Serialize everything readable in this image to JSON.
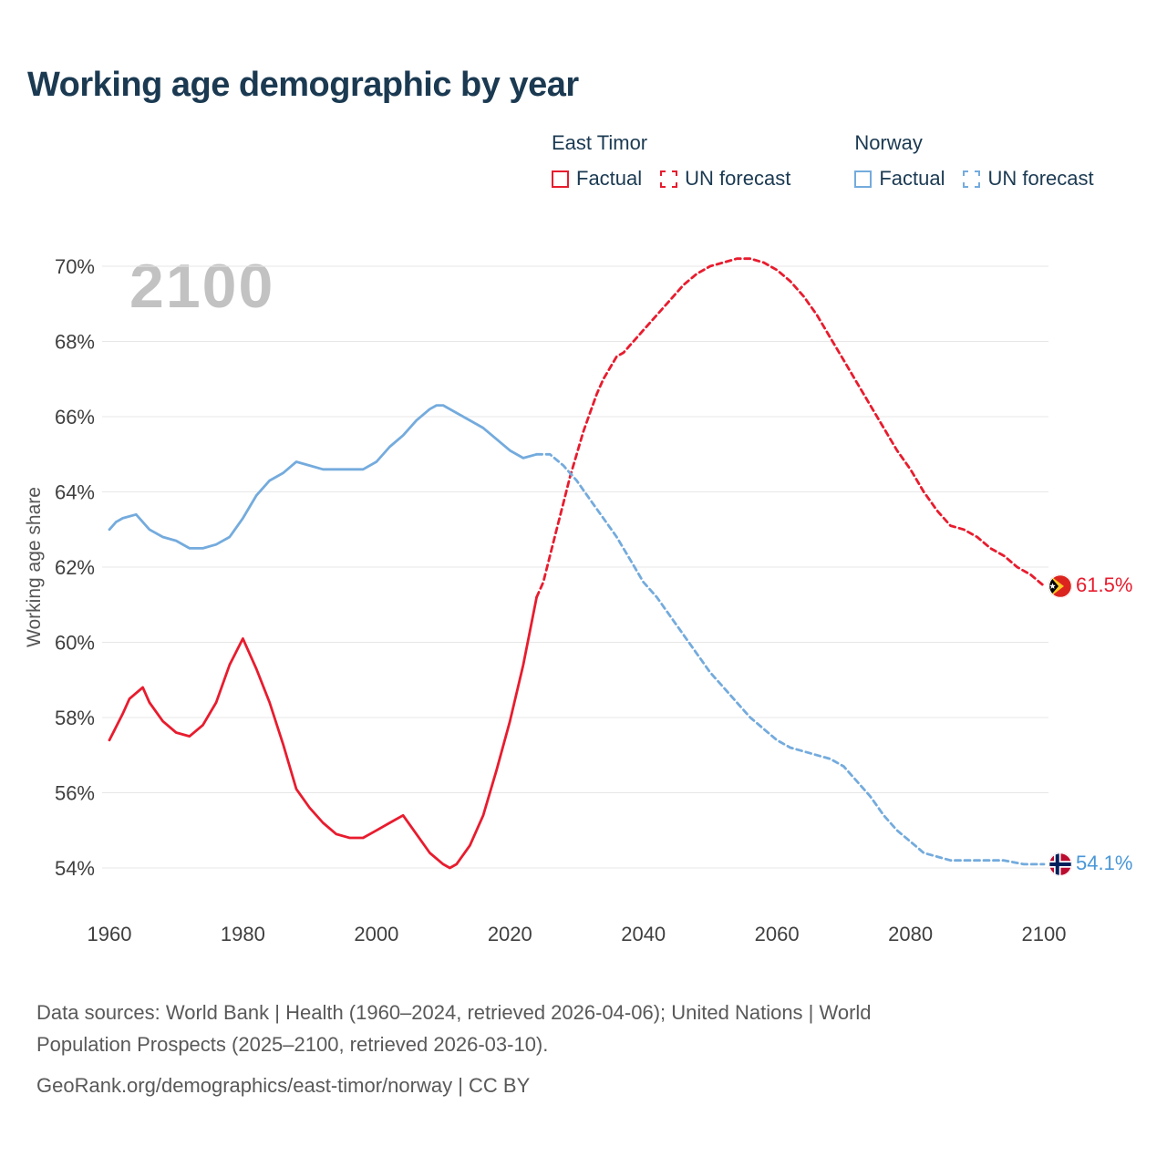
{
  "title": "Working age demographic by year",
  "watermark": "2100",
  "legend": {
    "groups": [
      {
        "name": "East Timor",
        "color": "#e81c2e",
        "items": [
          {
            "label": "Factual",
            "style": "solid"
          },
          {
            "label": "UN forecast",
            "style": "dashed"
          }
        ]
      },
      {
        "name": "Norway",
        "color": "#74abdd",
        "items": [
          {
            "label": "Factual",
            "style": "solid"
          },
          {
            "label": "UN forecast",
            "style": "dashed"
          }
        ]
      }
    ]
  },
  "end_labels": [
    {
      "flag": "east-timor",
      "text": "61.5%",
      "value": 61.5,
      "color": "#e81c2e"
    },
    {
      "flag": "norway",
      "text": "54.1%",
      "value": 54.1,
      "color": "#4a97d7"
    }
  ],
  "footer": {
    "lines": [
      "Data sources: World Bank | Health (1960–2024, retrieved 2026-04-06); United Nations | World",
      "Population Prospects (2025–2100, retrieved 2026-03-10).",
      "GeoRank.org/demographics/east-timor/norway | CC BY"
    ]
  },
  "chart_data": {
    "type": "line",
    "title": "Working age demographic by year",
    "xlabel": "",
    "ylabel": "Working age share",
    "xlim": [
      1960,
      2100
    ],
    "ylim": [
      54,
      70
    ],
    "xticks": [
      1960,
      1980,
      2000,
      2020,
      2040,
      2060,
      2080,
      2100
    ],
    "yticks": [
      54,
      56,
      58,
      60,
      62,
      64,
      66,
      68,
      70
    ],
    "grid": "horizontal",
    "legend_position": "top-right",
    "series": [
      {
        "name": "East Timor — Factual",
        "color": "#e81c2e",
        "dash": "solid",
        "points": [
          [
            1960,
            57.4
          ],
          [
            1962,
            58.1
          ],
          [
            1963,
            58.5
          ],
          [
            1965,
            58.8
          ],
          [
            1966,
            58.4
          ],
          [
            1968,
            57.9
          ],
          [
            1970,
            57.6
          ],
          [
            1972,
            57.5
          ],
          [
            1974,
            57.8
          ],
          [
            1976,
            58.4
          ],
          [
            1978,
            59.4
          ],
          [
            1980,
            60.1
          ],
          [
            1982,
            59.3
          ],
          [
            1984,
            58.4
          ],
          [
            1986,
            57.3
          ],
          [
            1988,
            56.1
          ],
          [
            1990,
            55.6
          ],
          [
            1992,
            55.2
          ],
          [
            1994,
            54.9
          ],
          [
            1996,
            54.8
          ],
          [
            1998,
            54.8
          ],
          [
            2000,
            55.0
          ],
          [
            2002,
            55.2
          ],
          [
            2004,
            55.4
          ],
          [
            2006,
            54.9
          ],
          [
            2008,
            54.4
          ],
          [
            2010,
            54.1
          ],
          [
            2011,
            54.0
          ],
          [
            2012,
            54.1
          ],
          [
            2014,
            54.6
          ],
          [
            2016,
            55.4
          ],
          [
            2018,
            56.6
          ],
          [
            2020,
            57.9
          ],
          [
            2022,
            59.4
          ],
          [
            2024,
            61.2
          ]
        ]
      },
      {
        "name": "East Timor — UN forecast",
        "color": "#e81c2e",
        "dash": "dashed",
        "points": [
          [
            2024,
            61.2
          ],
          [
            2025,
            61.6
          ],
          [
            2026,
            62.3
          ],
          [
            2027,
            63.0
          ],
          [
            2028,
            63.7
          ],
          [
            2029,
            64.4
          ],
          [
            2030,
            65.0
          ],
          [
            2031,
            65.6
          ],
          [
            2032,
            66.1
          ],
          [
            2033,
            66.6
          ],
          [
            2034,
            67.0
          ],
          [
            2035,
            67.3
          ],
          [
            2036,
            67.6
          ],
          [
            2037,
            67.7
          ],
          [
            2038,
            67.9
          ],
          [
            2040,
            68.3
          ],
          [
            2042,
            68.7
          ],
          [
            2044,
            69.1
          ],
          [
            2046,
            69.5
          ],
          [
            2048,
            69.8
          ],
          [
            2050,
            70.0
          ],
          [
            2052,
            70.1
          ],
          [
            2054,
            70.2
          ],
          [
            2056,
            70.2
          ],
          [
            2058,
            70.1
          ],
          [
            2060,
            69.9
          ],
          [
            2062,
            69.6
          ],
          [
            2064,
            69.2
          ],
          [
            2066,
            68.7
          ],
          [
            2068,
            68.1
          ],
          [
            2070,
            67.5
          ],
          [
            2072,
            66.9
          ],
          [
            2074,
            66.3
          ],
          [
            2076,
            65.7
          ],
          [
            2078,
            65.1
          ],
          [
            2080,
            64.6
          ],
          [
            2082,
            64.0
          ],
          [
            2084,
            63.5
          ],
          [
            2086,
            63.1
          ],
          [
            2088,
            63.0
          ],
          [
            2090,
            62.8
          ],
          [
            2092,
            62.5
          ],
          [
            2094,
            62.3
          ],
          [
            2096,
            62.0
          ],
          [
            2098,
            61.8
          ],
          [
            2100,
            61.5
          ]
        ]
      },
      {
        "name": "Norway — Factual",
        "color": "#74abdd",
        "dash": "solid",
        "points": [
          [
            1960,
            63.0
          ],
          [
            1961,
            63.2
          ],
          [
            1962,
            63.3
          ],
          [
            1964,
            63.4
          ],
          [
            1966,
            63.0
          ],
          [
            1968,
            62.8
          ],
          [
            1970,
            62.7
          ],
          [
            1972,
            62.5
          ],
          [
            1974,
            62.5
          ],
          [
            1976,
            62.6
          ],
          [
            1978,
            62.8
          ],
          [
            1980,
            63.3
          ],
          [
            1982,
            63.9
          ],
          [
            1984,
            64.3
          ],
          [
            1986,
            64.5
          ],
          [
            1988,
            64.8
          ],
          [
            1990,
            64.7
          ],
          [
            1992,
            64.6
          ],
          [
            1994,
            64.6
          ],
          [
            1996,
            64.6
          ],
          [
            1998,
            64.6
          ],
          [
            2000,
            64.8
          ],
          [
            2002,
            65.2
          ],
          [
            2004,
            65.5
          ],
          [
            2006,
            65.9
          ],
          [
            2008,
            66.2
          ],
          [
            2009,
            66.3
          ],
          [
            2010,
            66.3
          ],
          [
            2012,
            66.1
          ],
          [
            2014,
            65.9
          ],
          [
            2016,
            65.7
          ],
          [
            2018,
            65.4
          ],
          [
            2020,
            65.1
          ],
          [
            2022,
            64.9
          ],
          [
            2024,
            65.0
          ]
        ]
      },
      {
        "name": "Norway — UN forecast",
        "color": "#74abdd",
        "dash": "dashed",
        "points": [
          [
            2024,
            65.0
          ],
          [
            2026,
            65.0
          ],
          [
            2028,
            64.7
          ],
          [
            2030,
            64.3
          ],
          [
            2032,
            63.8
          ],
          [
            2034,
            63.3
          ],
          [
            2036,
            62.8
          ],
          [
            2038,
            62.2
          ],
          [
            2040,
            61.6
          ],
          [
            2042,
            61.2
          ],
          [
            2044,
            60.7
          ],
          [
            2046,
            60.2
          ],
          [
            2048,
            59.7
          ],
          [
            2050,
            59.2
          ],
          [
            2052,
            58.8
          ],
          [
            2054,
            58.4
          ],
          [
            2056,
            58.0
          ],
          [
            2058,
            57.7
          ],
          [
            2060,
            57.4
          ],
          [
            2062,
            57.2
          ],
          [
            2064,
            57.1
          ],
          [
            2066,
            57.0
          ],
          [
            2068,
            56.9
          ],
          [
            2070,
            56.7
          ],
          [
            2072,
            56.3
          ],
          [
            2074,
            55.9
          ],
          [
            2076,
            55.4
          ],
          [
            2078,
            55.0
          ],
          [
            2080,
            54.7
          ],
          [
            2082,
            54.4
          ],
          [
            2084,
            54.3
          ],
          [
            2086,
            54.2
          ],
          [
            2090,
            54.2
          ],
          [
            2094,
            54.2
          ],
          [
            2097,
            54.1
          ],
          [
            2100,
            54.1
          ]
        ]
      }
    ]
  }
}
